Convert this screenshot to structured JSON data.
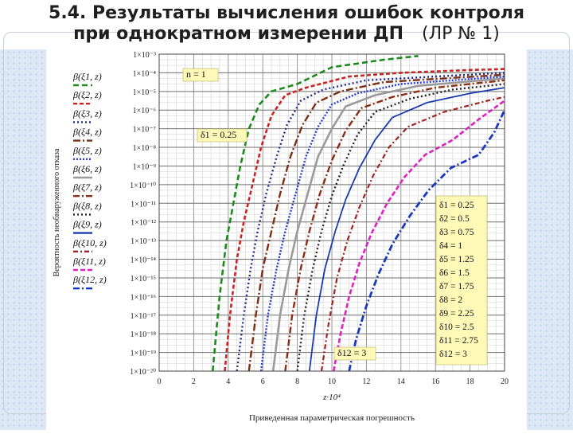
{
  "slide": {
    "title_line1": "5.4. Результаты вычисления ошибок контроля",
    "title_line2_bold": "при однократном измерении ДП",
    "title_line2_normal": "(ЛР № 1)"
  },
  "chart_data": {
    "type": "line",
    "ylabel": "Вероятность необнаруженного отказа",
    "xlabel": "Приведенная параметрическая погрешность",
    "x_axis_title": "z·10⁴",
    "xlim": [
      0,
      20
    ],
    "x_ticks": [
      "0",
      "2",
      "4",
      "6",
      "8",
      "10",
      "12",
      "14",
      "16",
      "18",
      "20"
    ],
    "y_scale": "log",
    "ylim_exponents": [
      -20,
      -3
    ],
    "y_ticks": [
      "1×10⁻³",
      "1×10⁻⁴",
      "1×10⁻⁵",
      "1×10⁻⁶",
      "1×10⁻⁷",
      "1×10⁻⁸",
      "1×10⁻⁹",
      "1×10⁻¹⁰",
      "1×10⁻¹¹",
      "1×10⁻¹²",
      "1×10⁻¹³",
      "1×10⁻¹⁴",
      "1×10⁻¹⁵",
      "1×10⁻¹⁶",
      "1×10⁻¹⁷",
      "1×10⁻¹⁸",
      "1×10⁻¹⁹",
      "1×10⁻²⁰"
    ],
    "grid": true,
    "annotations": {
      "n": "n = 1",
      "delta_first": "δ1 = 0.25",
      "delta_last": "δ12 = 3"
    },
    "delta_list": [
      "δ1 = 0.25",
      "δ2 = 0.5",
      "δ3 = 0.75",
      "δ4 = 1",
      "δ5 = 1.25",
      "δ6 = 1.5",
      "δ7 = 1.75",
      "δ8 = 2",
      "δ9 = 2.25",
      "δ10 = 2.5",
      "δ11 = 2.75",
      "δ12 = 3"
    ],
    "series": [
      {
        "name": "β(ξ1, z)",
        "color": "#1e8a1e",
        "dash": "7,4",
        "width": 2.6,
        "points": [
          [
            3.1,
            -20
          ],
          [
            3.5,
            -16
          ],
          [
            3.9,
            -13
          ],
          [
            4.3,
            -11
          ],
          [
            4.7,
            -9
          ],
          [
            5.2,
            -7
          ],
          [
            5.8,
            -5.7
          ],
          [
            6.5,
            -5
          ],
          [
            8,
            -4.6
          ],
          [
            10,
            -3.7
          ],
          [
            13,
            -3.3
          ],
          [
            15,
            -3.1
          ]
        ]
      },
      {
        "name": "β(ξ2, z)",
        "color": "#cc2222",
        "dash": "5,3",
        "width": 2.6,
        "points": [
          [
            3.8,
            -20
          ],
          [
            4.1,
            -17
          ],
          [
            4.5,
            -14
          ],
          [
            4.9,
            -12
          ],
          [
            5.4,
            -10
          ],
          [
            5.9,
            -8
          ],
          [
            6.5,
            -6.3
          ],
          [
            7.3,
            -5.2
          ],
          [
            8.5,
            -4.8
          ],
          [
            11,
            -4.2
          ],
          [
            14,
            -4
          ],
          [
            18,
            -3.85
          ],
          [
            20,
            -3.8
          ]
        ]
      },
      {
        "name": "β(ξ3, z)",
        "color": "#1c2a8a",
        "dash": "2,3",
        "width": 2.4,
        "points": [
          [
            4.5,
            -20
          ],
          [
            4.9,
            -17
          ],
          [
            5.3,
            -14.5
          ],
          [
            5.7,
            -12.5
          ],
          [
            6.2,
            -10.5
          ],
          [
            6.8,
            -8.5
          ],
          [
            7.4,
            -6.8
          ],
          [
            8.2,
            -5.5
          ],
          [
            9.5,
            -4.9
          ],
          [
            12,
            -4.4
          ],
          [
            20,
            -4
          ]
        ]
      },
      {
        "name": "β(ξ4, z)",
        "color": "#7a2e14",
        "dash": "9,3,2,3",
        "width": 2.4,
        "points": [
          [
            5.2,
            -20
          ],
          [
            5.6,
            -17
          ],
          [
            6,
            -14.5
          ],
          [
            6.5,
            -12.5
          ],
          [
            7,
            -10.5
          ],
          [
            7.6,
            -8.5
          ],
          [
            8.3,
            -6.8
          ],
          [
            9.1,
            -5.6
          ],
          [
            10.5,
            -5
          ],
          [
            13,
            -4.5
          ],
          [
            20,
            -4.1
          ]
        ]
      },
      {
        "name": "β(ξ5, z)",
        "color": "#2a3cc8",
        "dash": "2,2",
        "width": 2.4,
        "points": [
          [
            5.9,
            -20
          ],
          [
            6.3,
            -17
          ],
          [
            6.8,
            -14.5
          ],
          [
            7.3,
            -12.5
          ],
          [
            7.9,
            -10.5
          ],
          [
            8.5,
            -8.5
          ],
          [
            9.2,
            -6.9
          ],
          [
            10,
            -5.7
          ],
          [
            11.5,
            -5.1
          ],
          [
            14,
            -4.6
          ],
          [
            20,
            -4.2
          ]
        ]
      },
      {
        "name": "β(ξ6, z)",
        "color": "#9a9a9a",
        "dash": "",
        "width": 2.6,
        "points": [
          [
            6.6,
            -20
          ],
          [
            7,
            -17
          ],
          [
            7.5,
            -14.5
          ],
          [
            8,
            -12.5
          ],
          [
            8.6,
            -10.5
          ],
          [
            9.2,
            -8.5
          ],
          [
            10,
            -7
          ],
          [
            10.8,
            -5.8
          ],
          [
            12.5,
            -5.2
          ],
          [
            15,
            -4.7
          ],
          [
            20,
            -4.3
          ]
        ]
      },
      {
        "name": "β(ξ7, z)",
        "color": "#8b2d14",
        "dash": "8,3,2,3",
        "width": 2.4,
        "points": [
          [
            7.3,
            -20
          ],
          [
            7.7,
            -17
          ],
          [
            8.2,
            -14.5
          ],
          [
            8.7,
            -12.5
          ],
          [
            9.3,
            -10.5
          ],
          [
            10,
            -8.7
          ],
          [
            10.8,
            -7.1
          ],
          [
            11.7,
            -5.9
          ],
          [
            13.5,
            -5.3
          ],
          [
            16,
            -4.8
          ],
          [
            20,
            -4.4
          ]
        ]
      },
      {
        "name": "β(ξ8, z)",
        "color": "#222222",
        "dash": "2,3",
        "width": 2.4,
        "points": [
          [
            8,
            -20
          ],
          [
            8.4,
            -17
          ],
          [
            8.9,
            -14.5
          ],
          [
            9.4,
            -12.5
          ],
          [
            10,
            -10.6
          ],
          [
            10.7,
            -8.9
          ],
          [
            11.5,
            -7.3
          ],
          [
            12.5,
            -6.1
          ],
          [
            14.5,
            -5.4
          ],
          [
            17,
            -4.9
          ],
          [
            20,
            -4.6
          ]
        ]
      },
      {
        "name": "β(ξ9, z)",
        "color": "#1a3ab0",
        "dash": "",
        "width": 1.8,
        "points": [
          [
            8.7,
            -20
          ],
          [
            9.1,
            -17
          ],
          [
            9.6,
            -14.5
          ],
          [
            10.2,
            -12.5
          ],
          [
            10.8,
            -10.8
          ],
          [
            11.6,
            -9.1
          ],
          [
            12.5,
            -7.6
          ],
          [
            13.5,
            -6.4
          ],
          [
            15.5,
            -5.6
          ],
          [
            18,
            -5.1
          ],
          [
            20,
            -4.8
          ]
        ]
      },
      {
        "name": "β(ξ10, z)",
        "color": "#9e2222",
        "dash": "6,3,2,3",
        "width": 2.2,
        "points": [
          [
            9.4,
            -20
          ],
          [
            9.8,
            -17.5
          ],
          [
            10.3,
            -15
          ],
          [
            10.9,
            -13
          ],
          [
            11.6,
            -11.2
          ],
          [
            12.4,
            -9.5
          ],
          [
            13.3,
            -8
          ],
          [
            14.4,
            -6.9
          ],
          [
            16.5,
            -6.1
          ],
          [
            19,
            -5.5
          ],
          [
            20,
            -5.3
          ]
        ]
      },
      {
        "name": "β(ξ11, z)",
        "color": "#e020c0",
        "dash": "6,3",
        "width": 2.6,
        "points": [
          [
            10.1,
            -20
          ],
          [
            10.5,
            -18
          ],
          [
            11,
            -16
          ],
          [
            11.6,
            -14.2
          ],
          [
            12.3,
            -12.6
          ],
          [
            13.2,
            -11
          ],
          [
            14.2,
            -9.6
          ],
          [
            15.4,
            -8.4
          ],
          [
            17,
            -7.6
          ],
          [
            18.5,
            -6.5
          ],
          [
            20,
            -5.5
          ]
        ]
      },
      {
        "name": "β(ξ12, z)",
        "color": "#1838c0",
        "dash": "8,3,2,3",
        "width": 2.8,
        "points": [
          [
            11,
            -20
          ],
          [
            11.4,
            -18.3
          ],
          [
            12,
            -16.5
          ],
          [
            12.7,
            -14.8
          ],
          [
            13.5,
            -13.2
          ],
          [
            14.5,
            -11.7
          ],
          [
            15.6,
            -10.3
          ],
          [
            16.9,
            -9.1
          ],
          [
            18.5,
            -8.4
          ],
          [
            19.4,
            -7.2
          ],
          [
            20,
            -6
          ]
        ]
      }
    ]
  }
}
